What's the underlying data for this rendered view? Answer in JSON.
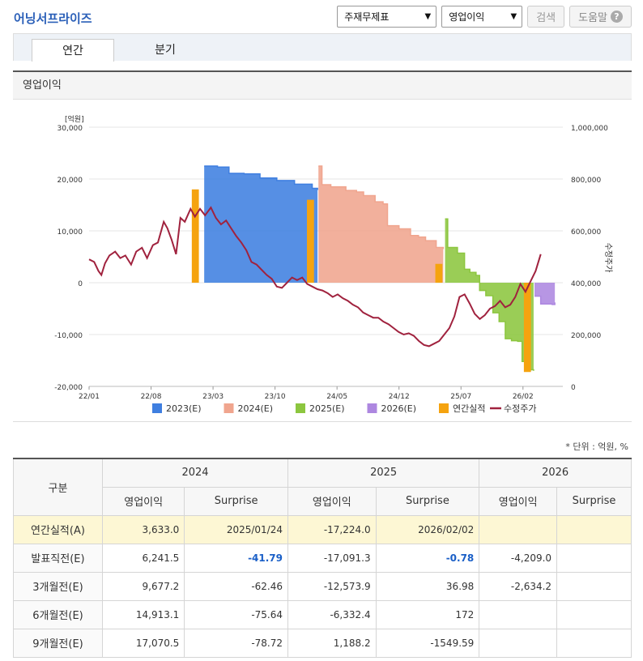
{
  "page_title": "어닝서프라이즈",
  "topbar": {
    "select1": "주재무제표",
    "select2": "영업이익",
    "search_label": "검색",
    "help_label": "도움말",
    "help_icon": "question-circle-icon"
  },
  "tabs": [
    {
      "label": "연간",
      "active": true
    },
    {
      "label": "분기",
      "active": false
    }
  ],
  "section_title": "영업이익",
  "unit_note": "* 단위 : 억원, %",
  "chart_data": {
    "type": "area",
    "left_axis_unit": "[억원]",
    "right_axis_label": "수정주가",
    "left_ticks": [
      "30,000",
      "20,000",
      "10,000",
      "0",
      "-10,000",
      "-20,000"
    ],
    "right_ticks": [
      "1,000,000",
      "800,000",
      "600,000",
      "400,000",
      "200,000",
      "0"
    ],
    "ylim_left": [
      -20000,
      30000
    ],
    "ylim_right": [
      0,
      1000000
    ],
    "x_ticks": [
      "22/01",
      "22/08",
      "23/03",
      "23/10",
      "24/05",
      "24/12",
      "25/07",
      "26/02"
    ],
    "xlim_months": [
      0,
      51
    ],
    "legend": [
      "2023(E)",
      "2024(E)",
      "2025(E)",
      "2026(E)",
      "연간실적",
      "수정주가"
    ],
    "colors": {
      "2023(E)": "#3f7fe0",
      "2024(E)": "#f0a58e",
      "2025(E)": "#8cc63f",
      "2026(E)": "#ad87e0",
      "연간실적": "#f5a30f",
      "수정주가": "#a0223e"
    },
    "estimate_series": [
      {
        "name": "2023(E)",
        "points": [
          [
            13.0,
            22500
          ],
          [
            14.5,
            22300
          ],
          [
            15.8,
            21100
          ],
          [
            17.5,
            21000
          ],
          [
            19.3,
            20200
          ],
          [
            21.2,
            19700
          ],
          [
            23.2,
            19000
          ],
          [
            25.2,
            18200
          ],
          [
            25.8,
            17900
          ]
        ]
      },
      {
        "name": "2024(E)",
        "points": [
          [
            25.9,
            22500
          ],
          [
            26.3,
            18900
          ],
          [
            27.3,
            18500
          ],
          [
            29.0,
            17800
          ],
          [
            30.2,
            17500
          ],
          [
            31.0,
            16800
          ],
          [
            32.3,
            15600
          ],
          [
            33.2,
            15200
          ],
          [
            33.7,
            11000
          ],
          [
            35.0,
            10400
          ],
          [
            36.3,
            9100
          ],
          [
            37.2,
            8800
          ],
          [
            38.0,
            8100
          ],
          [
            39.2,
            6800
          ],
          [
            40.0,
            6500
          ]
        ]
      },
      {
        "name": "2025(E)",
        "points": [
          [
            40.2,
            12300
          ],
          [
            40.5,
            6800
          ],
          [
            41.6,
            5700
          ],
          [
            42.4,
            2600
          ],
          [
            43.0,
            2000
          ],
          [
            43.7,
            1400
          ],
          [
            44.1,
            -1500
          ],
          [
            44.8,
            -2500
          ],
          [
            45.6,
            -5800
          ],
          [
            46.3,
            -7500
          ],
          [
            47.0,
            -10800
          ],
          [
            47.7,
            -11200
          ],
          [
            48.4,
            -11300
          ],
          [
            48.9,
            -15200
          ],
          [
            49.4,
            -16800
          ],
          [
            50.2,
            -17000
          ]
        ]
      },
      {
        "name": "2026(E)",
        "points": [
          [
            50.3,
            -2600
          ],
          [
            51.0,
            -4100
          ],
          [
            52.3,
            -4200
          ],
          [
            52.6,
            -3800
          ]
        ]
      }
    ],
    "actual_series": {
      "name": "연간실적",
      "bars": [
        {
          "x": 12.0,
          "width_months": 0.8,
          "value": 18000
        },
        {
          "x": 25.0,
          "width_months": 0.8,
          "value": 16000
        },
        {
          "x": 39.5,
          "width_months": 0.8,
          "value": 3633
        },
        {
          "x": 49.5,
          "width_months": 0.8,
          "value": -17224
        }
      ]
    },
    "price_series": {
      "name": "수정주가",
      "points": [
        [
          0,
          490000
        ],
        [
          0.7,
          480000
        ],
        [
          1.3,
          445000
        ],
        [
          1.7,
          430000
        ],
        [
          2.2,
          475000
        ],
        [
          2.8,
          505000
        ],
        [
          3.6,
          520000
        ],
        [
          4.3,
          495000
        ],
        [
          5.0,
          505000
        ],
        [
          5.8,
          470000
        ],
        [
          6.5,
          520000
        ],
        [
          7.3,
          535000
        ],
        [
          8.0,
          495000
        ],
        [
          8.8,
          545000
        ],
        [
          9.5,
          555000
        ],
        [
          10.3,
          635000
        ],
        [
          10.8,
          610000
        ],
        [
          11.4,
          565000
        ],
        [
          12.0,
          510000
        ],
        [
          12.6,
          650000
        ],
        [
          13.2,
          635000
        ],
        [
          14.0,
          685000
        ],
        [
          14.6,
          655000
        ],
        [
          15.3,
          685000
        ],
        [
          16.0,
          660000
        ],
        [
          16.8,
          690000
        ],
        [
          17.5,
          650000
        ],
        [
          18.2,
          625000
        ],
        [
          18.9,
          640000
        ],
        [
          19.6,
          610000
        ],
        [
          20.3,
          580000
        ],
        [
          21.0,
          555000
        ],
        [
          21.7,
          525000
        ],
        [
          22.4,
          480000
        ],
        [
          23.1,
          470000
        ],
        [
          23.8,
          450000
        ],
        [
          24.5,
          430000
        ],
        [
          25.2,
          415000
        ],
        [
          25.9,
          385000
        ],
        [
          26.6,
          380000
        ],
        [
          27.3,
          400000
        ],
        [
          28.0,
          420000
        ],
        [
          28.7,
          410000
        ],
        [
          29.4,
          420000
        ],
        [
          30.1,
          395000
        ],
        [
          30.8,
          385000
        ],
        [
          31.5,
          375000
        ],
        [
          32.2,
          370000
        ],
        [
          32.9,
          360000
        ],
        [
          33.6,
          345000
        ],
        [
          34.3,
          355000
        ],
        [
          35.0,
          340000
        ],
        [
          35.7,
          330000
        ],
        [
          36.4,
          315000
        ],
        [
          37.1,
          305000
        ],
        [
          37.8,
          285000
        ],
        [
          38.5,
          275000
        ],
        [
          39.2,
          265000
        ],
        [
          39.9,
          265000
        ],
        [
          40.6,
          250000
        ],
        [
          41.3,
          240000
        ],
        [
          42.0,
          225000
        ],
        [
          42.7,
          210000
        ],
        [
          43.4,
          200000
        ],
        [
          44.1,
          205000
        ],
        [
          44.8,
          195000
        ],
        [
          45.5,
          175000
        ],
        [
          46.2,
          160000
        ],
        [
          46.9,
          155000
        ],
        [
          47.6,
          165000
        ],
        [
          48.3,
          175000
        ],
        [
          49.0,
          200000
        ],
        [
          49.7,
          225000
        ],
        [
          50.4,
          270000
        ],
        [
          51.1,
          345000
        ],
        [
          51.8,
          355000
        ],
        [
          52.5,
          320000
        ],
        [
          53.2,
          280000
        ],
        [
          53.9,
          260000
        ],
        [
          54.6,
          275000
        ],
        [
          55.3,
          300000
        ],
        [
          56.0,
          310000
        ],
        [
          56.7,
          330000
        ],
        [
          57.4,
          305000
        ],
        [
          58.1,
          315000
        ],
        [
          58.8,
          345000
        ],
        [
          59.5,
          395000
        ],
        [
          60.2,
          365000
        ],
        [
          60.9,
          405000
        ],
        [
          61.6,
          445000
        ],
        [
          62.3,
          510000
        ]
      ]
    }
  },
  "table": {
    "header_row_label": "구분",
    "years": [
      "2024",
      "2025",
      "2026"
    ],
    "sub_headers": [
      "영업이익",
      "Surprise"
    ],
    "rows": [
      {
        "label": "연간실적(A)",
        "actual": true,
        "cells": [
          "3,633.0",
          "2025/01/24",
          "-17,224.0",
          "2026/02/02",
          "",
          ""
        ]
      },
      {
        "label": "발표직전(E)",
        "cells": [
          "6,241.5",
          "-41.79",
          "-17,091.3",
          "-0.78",
          "-4,209.0",
          ""
        ],
        "highlight": [
          1,
          3
        ]
      },
      {
        "label": "3개월전(E)",
        "cells": [
          "9,677.2",
          "-62.46",
          "-12,573.9",
          "36.98",
          "-2,634.2",
          ""
        ]
      },
      {
        "label": "6개월전(E)",
        "cells": [
          "14,913.1",
          "-75.64",
          "-6,332.4",
          "172",
          "",
          ""
        ]
      },
      {
        "label": "9개월전(E)",
        "cells": [
          "17,070.5",
          "-78.72",
          "1,188.2",
          "-1549.59",
          "",
          ""
        ]
      }
    ]
  }
}
